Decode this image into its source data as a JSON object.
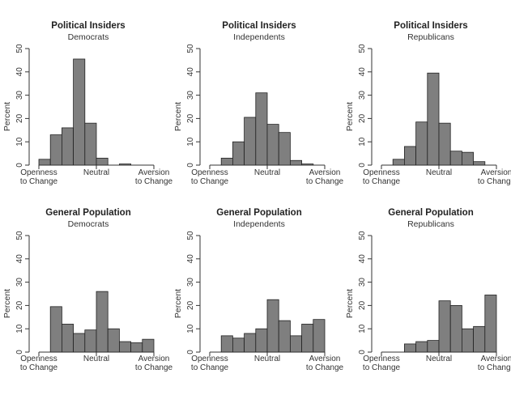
{
  "chart_data": [
    {
      "type": "bar",
      "title": "Political Insiders",
      "subtitle": "Democrats",
      "ylabel": "Percent",
      "ylim": [
        0,
        50
      ],
      "yticks": [
        0,
        10,
        20,
        30,
        40,
        50
      ],
      "xtick_labels": [
        [
          "Openness",
          "to Change"
        ],
        [
          "Neutral"
        ],
        [
          "Aversion",
          "to Change"
        ]
      ],
      "values": [
        2.5,
        13,
        16,
        45.5,
        18,
        3,
        0,
        0.5,
        0,
        0
      ]
    },
    {
      "type": "bar",
      "title": "Political Insiders",
      "subtitle": "Independents",
      "ylabel": "Percent",
      "ylim": [
        0,
        50
      ],
      "yticks": [
        0,
        10,
        20,
        30,
        40,
        50
      ],
      "xtick_labels": [
        [
          "Openness",
          "to Change"
        ],
        [
          "Neutral"
        ],
        [
          "Aversion",
          "to Change"
        ]
      ],
      "values": [
        0,
        3,
        10,
        20.5,
        31,
        17.5,
        14,
        2,
        0.5,
        0
      ]
    },
    {
      "type": "bar",
      "title": "Political Insiders",
      "subtitle": "Republicans",
      "ylabel": "Percent",
      "ylim": [
        0,
        50
      ],
      "yticks": [
        0,
        10,
        20,
        30,
        40,
        50
      ],
      "xtick_labels": [
        [
          "Openness",
          "to Change"
        ],
        [
          "Neutral"
        ],
        [
          "Aversion",
          "to Change"
        ]
      ],
      "values": [
        0,
        2.5,
        8,
        18.5,
        39.5,
        18,
        6,
        5.5,
        1.5,
        0
      ]
    },
    {
      "type": "bar",
      "title": "General Population",
      "subtitle": "Democrats",
      "ylabel": "Percent",
      "ylim": [
        0,
        50
      ],
      "yticks": [
        0,
        10,
        20,
        30,
        40,
        50
      ],
      "xtick_labels": [
        [
          "Openness",
          "to Change"
        ],
        [
          "Neutral"
        ],
        [
          "Aversion",
          "to Change"
        ]
      ],
      "values": [
        0,
        19.5,
        12,
        8,
        9.5,
        26,
        10,
        4.5,
        4,
        5.5
      ]
    },
    {
      "type": "bar",
      "title": "General Population",
      "subtitle": "Independents",
      "ylabel": "Percent",
      "ylim": [
        0,
        50
      ],
      "yticks": [
        0,
        10,
        20,
        30,
        40,
        50
      ],
      "xtick_labels": [
        [
          "Openness",
          "to Change"
        ],
        [
          "Neutral"
        ],
        [
          "Aversion",
          "to Change"
        ]
      ],
      "values": [
        0,
        7,
        6,
        8,
        10,
        22.5,
        13.5,
        7,
        12,
        14
      ]
    },
    {
      "type": "bar",
      "title": "General Population",
      "subtitle": "Republicans",
      "ylabel": "Percent",
      "ylim": [
        0,
        50
      ],
      "yticks": [
        0,
        10,
        20,
        30,
        40,
        50
      ],
      "xtick_labels": [
        [
          "Openness",
          "to Change"
        ],
        [
          "Neutral"
        ],
        [
          "Aversion",
          "to Change"
        ]
      ],
      "values": [
        0,
        0,
        3.5,
        4.5,
        5,
        22,
        20,
        10,
        11,
        24.5
      ]
    }
  ]
}
